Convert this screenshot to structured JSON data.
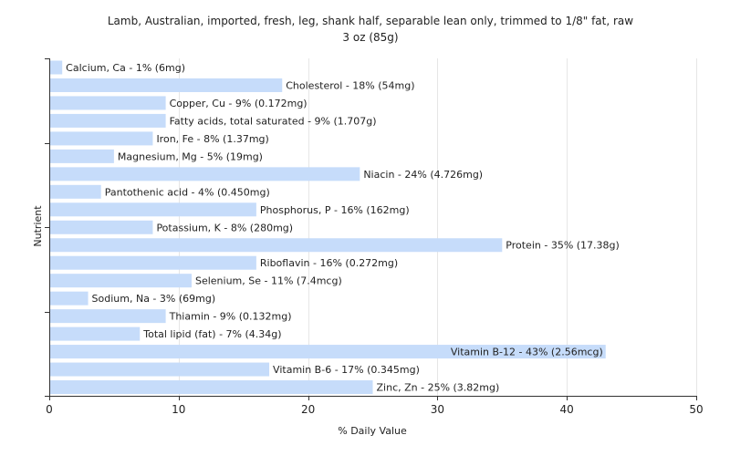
{
  "chart_data": {
    "type": "bar",
    "orientation": "horizontal",
    "title": "Lamb, Australian, imported, fresh, leg, shank half, separable lean only, trimmed to 1/8\" fat, raw",
    "subtitle": "3 oz (85g)",
    "xlabel": "% Daily Value",
    "ylabel": "Nutrient",
    "xlim": [
      0,
      50
    ],
    "xticks": [
      0,
      10,
      20,
      30,
      40,
      50
    ],
    "grid": true,
    "bar_color": "#c6dcfa",
    "categories": [
      "Calcium, Ca",
      "Cholesterol",
      "Copper, Cu",
      "Fatty acids, total saturated",
      "Iron, Fe",
      "Magnesium, Mg",
      "Niacin",
      "Pantothenic acid",
      "Phosphorus, P",
      "Potassium, K",
      "Protein",
      "Riboflavin",
      "Selenium, Se",
      "Sodium, Na",
      "Thiamin",
      "Total lipid (fat)",
      "Vitamin B-12",
      "Vitamin B-6",
      "Zinc, Zn"
    ],
    "values": [
      1,
      18,
      9,
      9,
      8,
      5,
      24,
      4,
      16,
      8,
      35,
      16,
      11,
      3,
      9,
      7,
      43,
      17,
      25
    ],
    "labels": [
      "Calcium, Ca - 1% (6mg)",
      "Cholesterol - 18% (54mg)",
      "Copper, Cu - 9% (0.172mg)",
      "Fatty acids, total saturated - 9% (1.707g)",
      "Iron, Fe - 8% (1.37mg)",
      "Magnesium, Mg - 5% (19mg)",
      "Niacin - 24% (4.726mg)",
      "Pantothenic acid - 4% (0.450mg)",
      "Phosphorus, P - 16% (162mg)",
      "Potassium, K - 8% (280mg)",
      "Protein - 35% (17.38g)",
      "Riboflavin - 16% (0.272mg)",
      "Selenium, Se - 11% (7.4mcg)",
      "Sodium, Na - 3% (69mg)",
      "Thiamin - 9% (0.132mg)",
      "Total lipid (fat) - 7% (4.34g)",
      "Vitamin B-12 - 43% (2.56mcg)",
      "Vitamin B-6 - 17% (0.345mg)",
      "Zinc, Zn - 25% (3.82mg)"
    ]
  }
}
